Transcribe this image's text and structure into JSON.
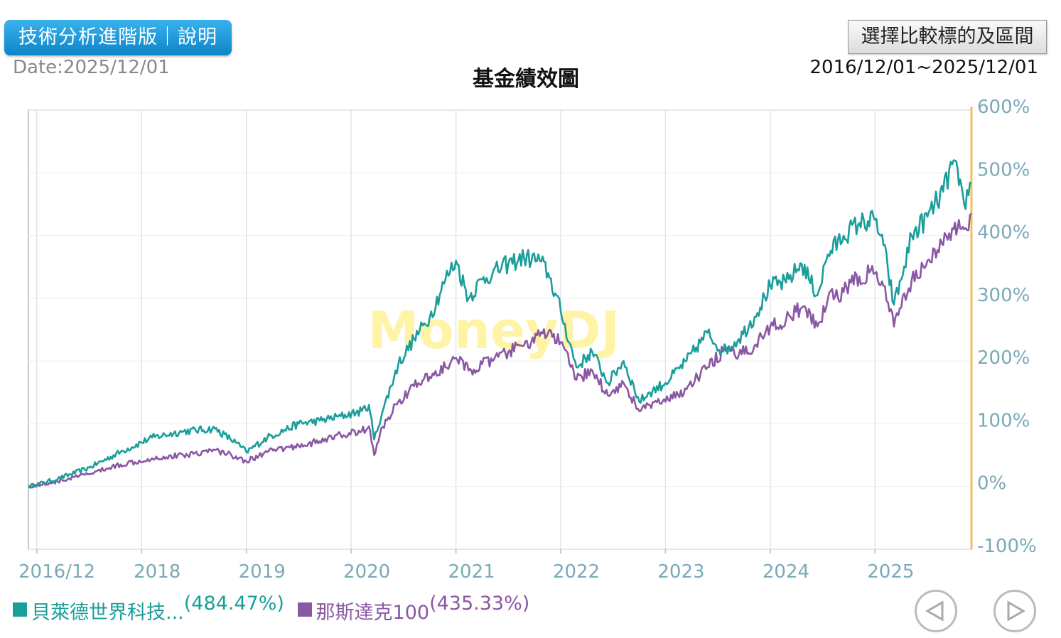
{
  "header": {
    "tech_button": "技術分析進階版｜說明",
    "date": "Date:2025/12/01",
    "title": "基金績效圖",
    "compare_button": "選擇比較標的及區間",
    "range": "2016/12/01~2025/12/01"
  },
  "watermark": "MoneyDJ",
  "legend": [
    {
      "name": "貝萊德世界科技...",
      "pct": "(484.47%)",
      "color": "#1a9e9a"
    },
    {
      "name": "那斯達克100",
      "pct": "(435.33%)",
      "color": "#8a57a3"
    }
  ],
  "nav": {
    "prev_icon": "triangle-left-icon",
    "next_icon": "triangle-right-icon"
  },
  "colors": {
    "axis": "#7aaab7",
    "grid": "#dde6ec",
    "right_axis": "#f0c060",
    "watermark": "#fff3a6"
  },
  "chart_data": {
    "type": "line",
    "title": "基金績效圖",
    "x_unit": "year",
    "xlim": [
      2016.92,
      2025.92
    ],
    "ylim": [
      -100,
      600
    ],
    "yticks": [
      600,
      500,
      400,
      300,
      200,
      100,
      0,
      -100
    ],
    "ytick_labels": [
      "600%",
      "500%",
      "400%",
      "300%",
      "200%",
      "100%",
      "0%",
      "-100%"
    ],
    "xticks": [
      2017.0,
      2018.0,
      2019.0,
      2020.0,
      2021.0,
      2022.0,
      2023.0,
      2024.0,
      2025.0
    ],
    "xtick_labels": [
      "2016/12",
      "2018",
      "2019",
      "2020",
      "2021",
      "2022",
      "2023",
      "2024",
      "2025"
    ],
    "series": [
      {
        "name": "貝萊德世界科技...",
        "final": 484.47,
        "x": [
          2016.92,
          2017.2,
          2017.5,
          2017.8,
          2018.1,
          2018.4,
          2018.7,
          2018.9,
          2019.0,
          2019.2,
          2019.5,
          2019.7,
          2019.9,
          2020.1,
          2020.17,
          2020.22,
          2020.3,
          2020.45,
          2020.6,
          2020.75,
          2020.9,
          2021.0,
          2021.12,
          2021.25,
          2021.35,
          2021.5,
          2021.65,
          2021.8,
          2021.88,
          2022.0,
          2022.15,
          2022.3,
          2022.45,
          2022.6,
          2022.75,
          2022.85,
          2023.0,
          2023.2,
          2023.4,
          2023.55,
          2023.7,
          2023.85,
          2024.0,
          2024.15,
          2024.3,
          2024.45,
          2024.55,
          2024.7,
          2024.85,
          2025.0,
          2025.08,
          2025.18,
          2025.25,
          2025.35,
          2025.5,
          2025.65,
          2025.75,
          2025.8,
          2025.85,
          2025.92
        ],
        "y": [
          0,
          12,
          30,
          55,
          78,
          88,
          92,
          70,
          55,
          78,
          100,
          105,
          112,
          120,
          130,
          75,
          120,
          195,
          235,
          270,
          330,
          360,
          300,
          330,
          340,
          355,
          365,
          360,
          340,
          280,
          190,
          215,
          165,
          200,
          135,
          150,
          165,
          200,
          245,
          215,
          235,
          270,
          320,
          325,
          355,
          305,
          370,
          400,
          420,
          425,
          385,
          290,
          330,
          400,
          430,
          470,
          520,
          480,
          450,
          484.47
        ]
      },
      {
        "name": "那斯達克100",
        "final": 435.33,
        "x": [
          2016.92,
          2017.2,
          2017.5,
          2017.8,
          2018.1,
          2018.4,
          2018.7,
          2018.9,
          2019.0,
          2019.2,
          2019.5,
          2019.7,
          2019.9,
          2020.1,
          2020.17,
          2020.22,
          2020.3,
          2020.45,
          2020.6,
          2020.75,
          2020.9,
          2021.0,
          2021.12,
          2021.25,
          2021.35,
          2021.5,
          2021.65,
          2021.8,
          2021.88,
          2022.0,
          2022.15,
          2022.3,
          2022.45,
          2022.6,
          2022.75,
          2022.85,
          2023.0,
          2023.2,
          2023.4,
          2023.55,
          2023.7,
          2023.85,
          2024.0,
          2024.15,
          2024.3,
          2024.45,
          2024.55,
          2024.7,
          2024.85,
          2025.0,
          2025.08,
          2025.18,
          2025.25,
          2025.35,
          2025.5,
          2025.65,
          2025.75,
          2025.8,
          2025.85,
          2025.92
        ],
        "y": [
          0,
          8,
          20,
          35,
          45,
          50,
          58,
          48,
          40,
          55,
          65,
          72,
          82,
          88,
          96,
          50,
          95,
          135,
          160,
          175,
          190,
          205,
          185,
          195,
          200,
          215,
          225,
          240,
          245,
          230,
          170,
          185,
          145,
          165,
          120,
          130,
          135,
          155,
          190,
          215,
          210,
          225,
          255,
          265,
          285,
          255,
          300,
          310,
          335,
          340,
          320,
          255,
          285,
          330,
          360,
          385,
          410,
          425,
          410,
          435.33
        ]
      }
    ]
  }
}
